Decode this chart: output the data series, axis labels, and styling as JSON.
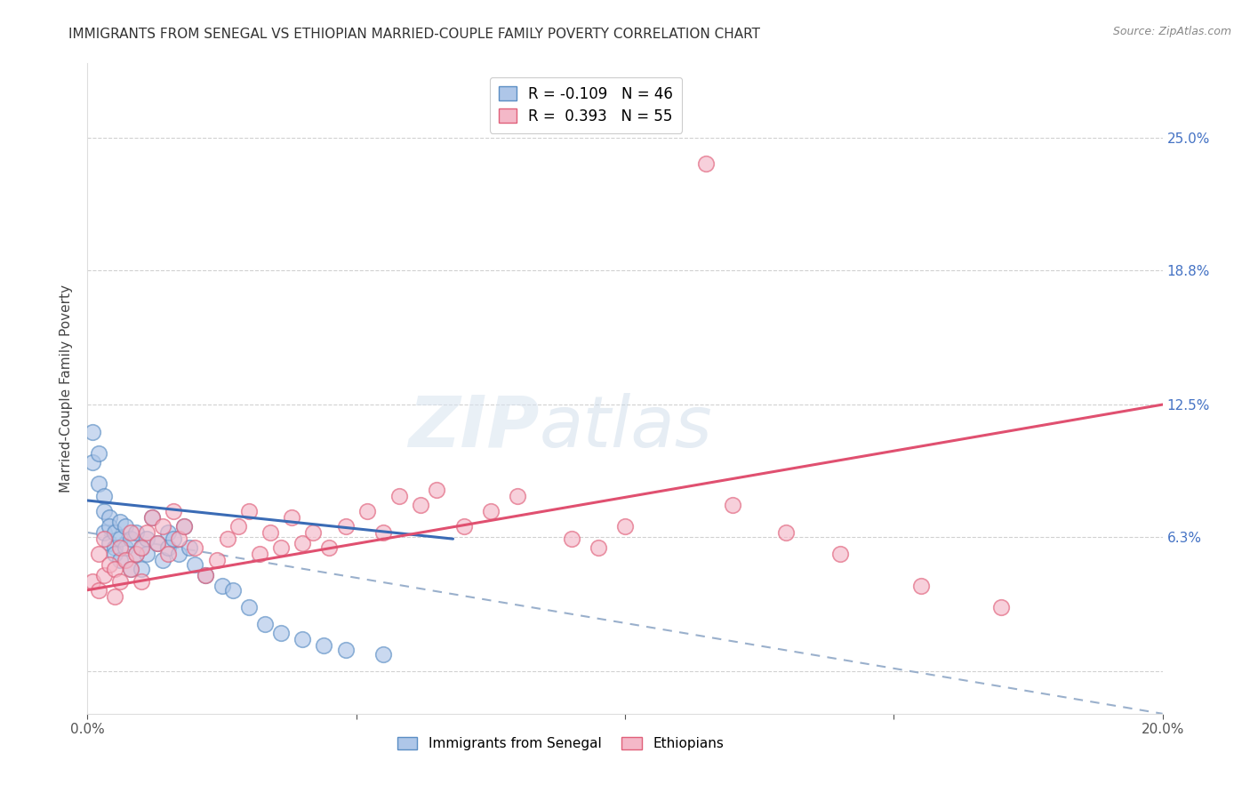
{
  "title": "IMMIGRANTS FROM SENEGAL VS ETHIOPIAN MARRIED-COUPLE FAMILY POVERTY CORRELATION CHART",
  "source": "Source: ZipAtlas.com",
  "ylabel": "Married-Couple Family Poverty",
  "xlim": [
    0.0,
    0.2
  ],
  "ylim": [
    -0.02,
    0.285
  ],
  "right_ytick_vals": [
    0.0,
    0.063,
    0.125,
    0.188,
    0.25
  ],
  "right_yticklabels": [
    "",
    "6.3%",
    "12.5%",
    "18.8%",
    "25.0%"
  ],
  "legend_r_blue": "-0.109",
  "legend_n_blue": "46",
  "legend_r_pink": "0.393",
  "legend_n_pink": "55",
  "blue_fill": "#aec6e8",
  "blue_edge": "#5b8ec4",
  "pink_fill": "#f4b8c8",
  "pink_edge": "#e0607a",
  "blue_line_color": "#3a6bb5",
  "pink_line_color": "#e05070",
  "dash_line_color": "#9ab0cc",
  "watermark_color": "#d8e4f0",
  "senegal_x": [
    0.001,
    0.001,
    0.002,
    0.002,
    0.003,
    0.003,
    0.003,
    0.004,
    0.004,
    0.004,
    0.005,
    0.005,
    0.005,
    0.006,
    0.006,
    0.006,
    0.007,
    0.007,
    0.008,
    0.008,
    0.009,
    0.009,
    0.01,
    0.01,
    0.011,
    0.011,
    0.012,
    0.013,
    0.014,
    0.015,
    0.015,
    0.016,
    0.017,
    0.018,
    0.019,
    0.02,
    0.022,
    0.025,
    0.027,
    0.03,
    0.033,
    0.036,
    0.04,
    0.044,
    0.048,
    0.055
  ],
  "senegal_y": [
    0.098,
    0.112,
    0.102,
    0.088,
    0.082,
    0.075,
    0.065,
    0.072,
    0.06,
    0.068,
    0.058,
    0.065,
    0.055,
    0.062,
    0.07,
    0.052,
    0.068,
    0.058,
    0.062,
    0.048,
    0.055,
    0.065,
    0.058,
    0.048,
    0.062,
    0.055,
    0.072,
    0.06,
    0.052,
    0.065,
    0.058,
    0.062,
    0.055,
    0.068,
    0.058,
    0.05,
    0.045,
    0.04,
    0.038,
    0.03,
    0.022,
    0.018,
    0.015,
    0.012,
    0.01,
    0.008
  ],
  "ethiopian_x": [
    0.001,
    0.002,
    0.002,
    0.003,
    0.003,
    0.004,
    0.005,
    0.005,
    0.006,
    0.006,
    0.007,
    0.008,
    0.008,
    0.009,
    0.01,
    0.01,
    0.011,
    0.012,
    0.013,
    0.014,
    0.015,
    0.016,
    0.017,
    0.018,
    0.02,
    0.022,
    0.024,
    0.026,
    0.028,
    0.03,
    0.032,
    0.034,
    0.036,
    0.038,
    0.04,
    0.042,
    0.045,
    0.048,
    0.052,
    0.055,
    0.058,
    0.062,
    0.065,
    0.07,
    0.075,
    0.08,
    0.09,
    0.095,
    0.1,
    0.115,
    0.12,
    0.13,
    0.14,
    0.155,
    0.17
  ],
  "ethiopian_y": [
    0.042,
    0.055,
    0.038,
    0.062,
    0.045,
    0.05,
    0.048,
    0.035,
    0.058,
    0.042,
    0.052,
    0.065,
    0.048,
    0.055,
    0.042,
    0.058,
    0.065,
    0.072,
    0.06,
    0.068,
    0.055,
    0.075,
    0.062,
    0.068,
    0.058,
    0.045,
    0.052,
    0.062,
    0.068,
    0.075,
    0.055,
    0.065,
    0.058,
    0.072,
    0.06,
    0.065,
    0.058,
    0.068,
    0.075,
    0.065,
    0.082,
    0.078,
    0.085,
    0.068,
    0.075,
    0.082,
    0.062,
    0.058,
    0.068,
    0.238,
    0.078,
    0.065,
    0.055,
    0.04,
    0.03
  ],
  "blue_line_x": [
    0.0,
    0.068
  ],
  "blue_line_y": [
    0.08,
    0.062
  ],
  "pink_line_x": [
    0.0,
    0.2
  ],
  "pink_line_y": [
    0.038,
    0.125
  ],
  "dash_line_x": [
    0.0,
    0.2
  ],
  "dash_line_y": [
    0.065,
    -0.02
  ]
}
